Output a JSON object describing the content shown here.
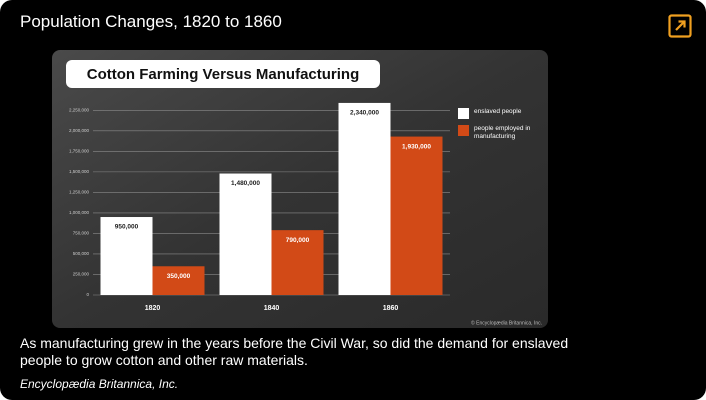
{
  "header": {
    "title": "Population Changes, 1820 to 1860"
  },
  "chart_data": {
    "type": "bar",
    "title": "Cotton Farming Versus Manufacturing",
    "categories": [
      "1820",
      "1840",
      "1860"
    ],
    "series": [
      {
        "name": "enslaved people",
        "color": "#ffffff",
        "values": [
          950000,
          1480000,
          2340000
        ],
        "value_labels": [
          "950,000",
          "1,480,000",
          "2,340,000"
        ]
      },
      {
        "name": "people employed in manufacturing",
        "color": "#d24a17",
        "values": [
          350000,
          790000,
          1930000
        ],
        "value_labels": [
          "350,000",
          "790,000",
          "1,930,000"
        ]
      }
    ],
    "ylim": [
      0,
      2400000
    ],
    "yticks": [
      0,
      {
        "value": 250000,
        "label": "250,000"
      },
      {
        "value": 500000,
        "label": "500,000"
      },
      {
        "value": 750000,
        "label": "750,000"
      },
      {
        "value": 1000000,
        "label": "1,000,000"
      },
      {
        "value": 1250000,
        "label": "1,250,000"
      },
      {
        "value": 1500000,
        "label": "1,500,000"
      },
      {
        "value": 1750000,
        "label": "1,750,000"
      },
      {
        "value": 2000000,
        "label": "2,000,000"
      },
      {
        "value": 2250000,
        "label": "2,250,000"
      }
    ],
    "grid": true,
    "legend": "right",
    "source": "© Encyclopædia Britannica, Inc."
  },
  "caption": "As manufacturing grew in the years before the Civil War, so did the demand for enslaved people to grow cotton and other raw materials.",
  "credit": "Encyclopædia Britannica, Inc."
}
